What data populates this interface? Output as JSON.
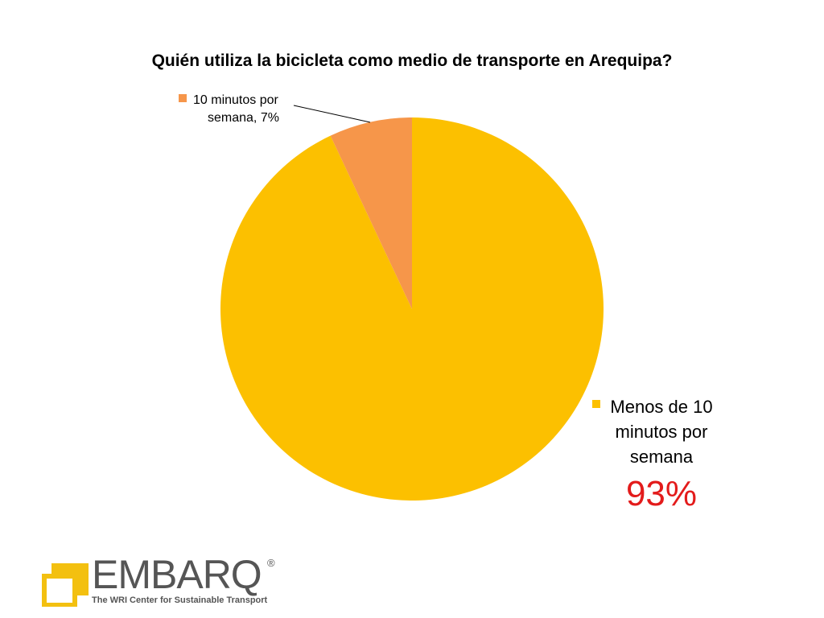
{
  "chart_data": {
    "type": "pie",
    "title": "Quién utiliza la bicicleta como medio de transporte en Arequipa?",
    "categories": [
      "Menos de 10 minutos por semana",
      "10 minutos por semana"
    ],
    "values": [
      93,
      7
    ],
    "colors": [
      "#fcc000",
      "#f6964a"
    ],
    "data_labels": {
      "large": {
        "text_lines": [
          "Menos de 10",
          "minutos por",
          "semana"
        ],
        "percent": "93%"
      },
      "small": {
        "line1": "10 minutos por",
        "line2": "semana, 7%"
      }
    }
  },
  "logo": {
    "wordmark": "EMBARQ",
    "registered": "®",
    "tagline": "The WRI Center for Sustainable Transport",
    "colors": {
      "yellow": "#f3c010",
      "gray": "#555555"
    }
  }
}
